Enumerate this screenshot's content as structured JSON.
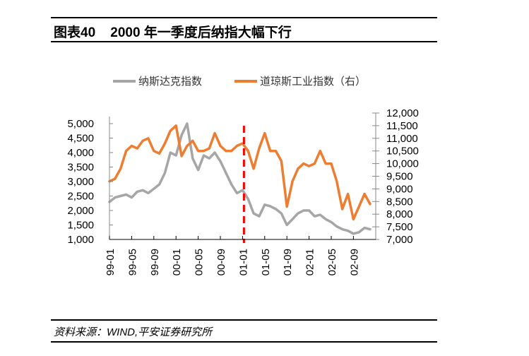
{
  "header": {
    "title": "图表40    2000 年一季度后纳指大幅下行"
  },
  "footer": {
    "source": "资料来源：WIND,平安证券研究所"
  },
  "colors": {
    "nasdaq": "#a6a6a6",
    "dow": "#ed7d31",
    "marker": "#ff0000"
  },
  "chart_data": {
    "type": "line",
    "title": "2000 年一季度后纳指大幅下行",
    "xlabel": "",
    "ylabel_left": "",
    "ylabel_right": "",
    "legend": [
      "纳斯达克指数",
      "道琼斯工业指数（右）"
    ],
    "legend_position": "top",
    "grid": false,
    "x_tick_labels": [
      "99-01",
      "99-05",
      "99-09",
      "00-01",
      "00-05",
      "00-09",
      "01-01",
      "01-05",
      "01-09",
      "02-01",
      "02-05",
      "02-09"
    ],
    "yleft": {
      "lim": [
        1000,
        5000
      ],
      "ticks": [
        1000,
        1500,
        2000,
        2500,
        3000,
        3500,
        4000,
        4500,
        5000
      ],
      "tick_labels": [
        "1,000",
        "1,500",
        "2,000",
        "2,500",
        "3,000",
        "3,500",
        "4,000",
        "4,500",
        "5,000"
      ]
    },
    "yright": {
      "lim": [
        7000,
        12000
      ],
      "ticks": [
        7000,
        7500,
        8000,
        8500,
        9000,
        9500,
        10000,
        10500,
        11000,
        11500,
        12000
      ],
      "tick_labels": [
        "7,000",
        "7,500",
        "8,000",
        "8,500",
        "9,000",
        "9,500",
        "10,000",
        "10,500",
        "11,000",
        "11,500",
        "12,000"
      ]
    },
    "x": [
      "99-01",
      "99-02",
      "99-03",
      "99-04",
      "99-05",
      "99-06",
      "99-07",
      "99-08",
      "99-09",
      "99-10",
      "99-11",
      "99-12",
      "00-01",
      "00-02",
      "00-03",
      "00-04",
      "00-05",
      "00-06",
      "00-07",
      "00-08",
      "00-09",
      "00-10",
      "00-11",
      "00-12",
      "01-01",
      "01-02",
      "01-03",
      "01-04",
      "01-05",
      "01-06",
      "01-07",
      "01-08",
      "01-09",
      "01-10",
      "01-11",
      "01-12",
      "02-01",
      "02-02",
      "02-03",
      "02-04",
      "02-05",
      "02-06",
      "02-07",
      "02-08",
      "02-09",
      "02-10",
      "02-11",
      "02-12"
    ],
    "series": [
      {
        "name": "纳斯达克指数",
        "axis": "left",
        "values": [
          2300,
          2450,
          2500,
          2550,
          2450,
          2650,
          2700,
          2600,
          2750,
          2900,
          3300,
          4000,
          3900,
          4600,
          5000,
          3800,
          3400,
          3900,
          3800,
          4000,
          3700,
          3300,
          2900,
          2600,
          2700,
          2400,
          1900,
          1800,
          2200,
          2150,
          2050,
          1900,
          1500,
          1700,
          1900,
          2000,
          2000,
          1800,
          1850,
          1700,
          1600,
          1450,
          1350,
          1300,
          1200,
          1250,
          1400,
          1350
        ]
      },
      {
        "name": "道琼斯工业指数（右）",
        "axis": "right",
        "values": [
          9300,
          9400,
          9800,
          10500,
          10700,
          10600,
          10900,
          11000,
          10500,
          10400,
          10800,
          11300,
          11500,
          10300,
          10700,
          10900,
          10500,
          10500,
          10600,
          11200,
          10700,
          10500,
          10500,
          10700,
          10800,
          10500,
          9800,
          10600,
          11200,
          10500,
          10500,
          10100,
          8300,
          9300,
          9800,
          10000,
          9900,
          10000,
          10500,
          10000,
          10000,
          9300,
          8200,
          8800,
          7800,
          8300,
          8800,
          8400
        ]
      }
    ],
    "annotations": [
      {
        "type": "vertical-dashed-line",
        "x": "01-01",
        "color": "#ff0000"
      }
    ]
  }
}
